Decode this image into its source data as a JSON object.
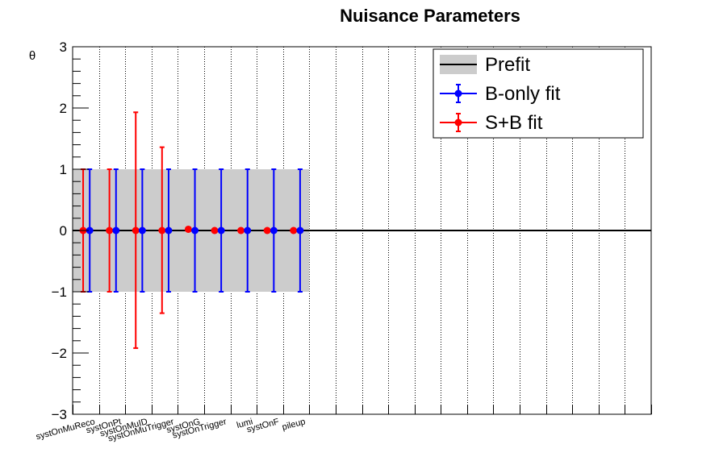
{
  "chart_data": {
    "type": "scatter",
    "title": "Nuisance Parameters",
    "ylabel": "θ",
    "xlabel": "",
    "ylim": [
      -3,
      3
    ],
    "yticks": [
      "−3",
      "−2",
      "−1",
      "0",
      "1",
      "2",
      "3"
    ],
    "categories": [
      "systOnMuReco",
      "systOnPt",
      "systOnMuID",
      "systOnMuTrigger",
      "systOnG",
      "systOnTrigger",
      "lumi",
      "systOnF",
      "pileup"
    ],
    "n_bins": 22,
    "grid": "vertical dotted",
    "prefit": {
      "name": "Prefit",
      "values": [
        0,
        0,
        0,
        0,
        0,
        0,
        0,
        0,
        0
      ],
      "band": [
        -1,
        1
      ],
      "color": "#cccccc"
    },
    "series": [
      {
        "name": "B-only fit",
        "color": "#0000ff",
        "values": [
          0,
          0,
          0,
          0,
          0,
          0,
          0,
          0,
          0
        ],
        "err_low": [
          1,
          1,
          1,
          1,
          1,
          1,
          1,
          1,
          1
        ],
        "err_high": [
          1,
          1,
          1,
          1,
          1,
          1,
          1,
          1,
          1
        ]
      },
      {
        "name": "S+B fit",
        "color": "#ff0000",
        "values": [
          0,
          0,
          0,
          0,
          0.02,
          0,
          0,
          0,
          0
        ],
        "err_low": [
          1,
          1,
          1.92,
          1.35,
          0,
          0,
          0,
          0,
          0
        ],
        "err_high": [
          1,
          1,
          1.93,
          1.36,
          0,
          0,
          0,
          0,
          0
        ]
      }
    ],
    "legend": {
      "placement": "top-right",
      "entries": [
        "Prefit",
        "B-only fit",
        "S+B fit"
      ]
    }
  }
}
